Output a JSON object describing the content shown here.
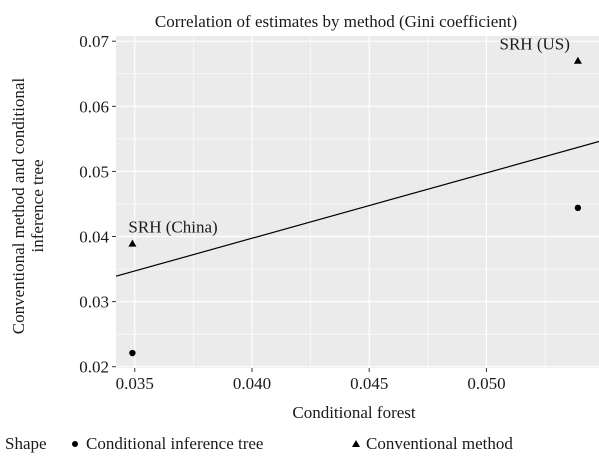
{
  "chart_data": {
    "type": "scatter",
    "title": "Correlation of estimates by method (Gini coefficient)",
    "xlabel": "Conditional forest",
    "ylabel_lines": [
      "Conventional method and conditional",
      "inference tree"
    ],
    "xlim": [
      0.0342,
      0.0548
    ],
    "ylim": [
      0.0198,
      0.0708
    ],
    "x_ticks": [
      0.035,
      0.04,
      0.045,
      0.05
    ],
    "x_tick_labels": [
      "0.035",
      "0.040",
      "0.045",
      "0.050"
    ],
    "y_ticks": [
      0.02,
      0.03,
      0.04,
      0.05,
      0.06,
      0.07
    ],
    "y_tick_labels": [
      "0.02",
      "0.03",
      "0.04",
      "0.05",
      "0.06",
      "0.07"
    ],
    "grid": true,
    "legend_position": "bottom",
    "legend_title": "Shape",
    "series": [
      {
        "name": "Conditional inference tree",
        "shape": "circle",
        "points": [
          {
            "x": 0.0349,
            "y": 0.0221
          },
          {
            "x": 0.0539,
            "y": 0.0444
          }
        ]
      },
      {
        "name": "Conventional method",
        "shape": "triangle",
        "points": [
          {
            "x": 0.0349,
            "y": 0.0389
          },
          {
            "x": 0.0539,
            "y": 0.067
          }
        ]
      }
    ],
    "annotations": [
      {
        "text": "SRH (China)",
        "x": 0.0349,
        "y": 0.0389
      },
      {
        "text": "SRH (US)",
        "x": 0.0539,
        "y": 0.067
      }
    ],
    "fit_line": {
      "x0": 0.0342,
      "y0": 0.0339,
      "x1": 0.0548,
      "y1": 0.0546
    }
  },
  "colors": {
    "panel_background": "#ebebeb",
    "gridline": "#ffffff",
    "marker": "#000000",
    "fit_line": "#000000"
  }
}
